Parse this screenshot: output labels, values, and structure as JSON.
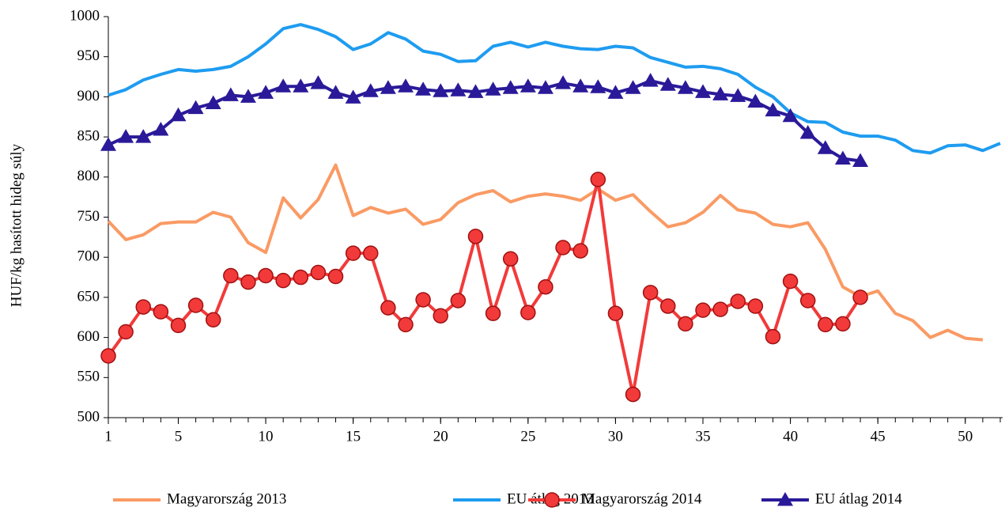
{
  "chart_data": {
    "type": "line",
    "y_label": "HUF/kg hasított hideg súly",
    "x": [
      1,
      2,
      3,
      4,
      5,
      6,
      7,
      8,
      9,
      10,
      11,
      12,
      13,
      14,
      15,
      16,
      17,
      18,
      19,
      20,
      21,
      22,
      23,
      24,
      25,
      26,
      27,
      28,
      29,
      30,
      31,
      32,
      33,
      34,
      35,
      36,
      37,
      38,
      39,
      40,
      41,
      42,
      43,
      44,
      45,
      46,
      47,
      48,
      49,
      50,
      51,
      52
    ],
    "xlim": [
      1,
      52
    ],
    "xticks": [
      1,
      5,
      10,
      15,
      20,
      25,
      30,
      35,
      40,
      45,
      50
    ],
    "ylim": [
      500,
      1000
    ],
    "yticks": [
      500,
      550,
      600,
      650,
      700,
      750,
      800,
      850,
      900,
      950,
      1000
    ],
    "legend": "bottom",
    "series": [
      {
        "name": "Magyarország 2013",
        "color": "#fa9a64",
        "marker": "none",
        "values": [
          745,
          722,
          728,
          742,
          744,
          744,
          756,
          750,
          718,
          706,
          774,
          749,
          772,
          815,
          752,
          762,
          755,
          760,
          741,
          747,
          768,
          778,
          783,
          769,
          776,
          779,
          776,
          771,
          785,
          771,
          778,
          757,
          738,
          743,
          756,
          777,
          759,
          755,
          741,
          738,
          743,
          710,
          663,
          651,
          658,
          630,
          621,
          600,
          609,
          599,
          597,
          null
        ]
      },
      {
        "name": "EU átlag 2013",
        "color": "#1e9cf0",
        "marker": "none",
        "values": [
          902,
          909,
          921,
          928,
          934,
          932,
          934,
          938,
          950,
          966,
          985,
          990,
          984,
          975,
          959,
          966,
          980,
          972,
          957,
          953,
          944,
          945,
          963,
          968,
          962,
          968,
          963,
          960,
          959,
          963,
          961,
          949,
          943,
          937,
          938,
          935,
          928,
          912,
          900,
          880,
          869,
          868,
          856,
          851,
          851,
          846,
          833,
          830,
          839,
          840,
          833,
          842
        ]
      },
      {
        "name": "Magyarország 2014",
        "color": "#f23a3a",
        "marker": "circle",
        "values": [
          577,
          607,
          638,
          632,
          615,
          640,
          622,
          677,
          669,
          677,
          671,
          675,
          681,
          676,
          705,
          705,
          637,
          616,
          647,
          627,
          646,
          726,
          630,
          698,
          631,
          663,
          712,
          708,
          797,
          630,
          529,
          656,
          639,
          617,
          634,
          635,
          645,
          639,
          601,
          670,
          646,
          616,
          617,
          650,
          null,
          null,
          null,
          null,
          null,
          null,
          null,
          null
        ]
      },
      {
        "name": "EU átlag 2014",
        "color": "#2a1a99",
        "marker": "triangle",
        "values": [
          840,
          850,
          850,
          859,
          877,
          886,
          892,
          902,
          900,
          905,
          913,
          913,
          917,
          905,
          899,
          907,
          911,
          913,
          909,
          907,
          908,
          906,
          909,
          911,
          913,
          911,
          917,
          913,
          912,
          905,
          911,
          920,
          915,
          911,
          906,
          903,
          901,
          894,
          883,
          876,
          855,
          836,
          823,
          820,
          null,
          null,
          null,
          null,
          null,
          null,
          null,
          null
        ]
      }
    ]
  }
}
